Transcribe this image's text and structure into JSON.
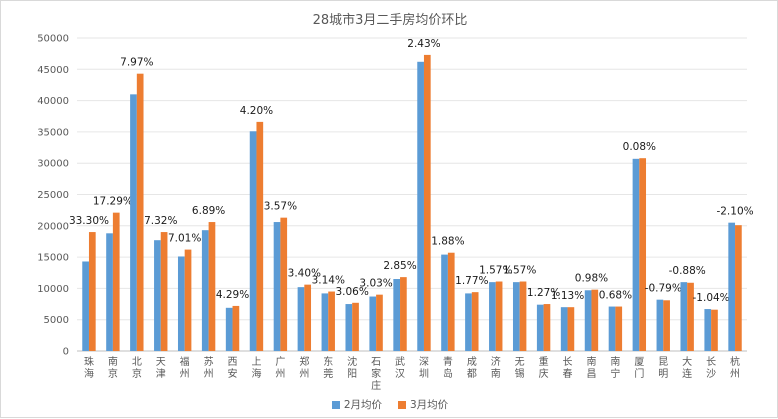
{
  "chart_data": {
    "type": "bar",
    "title": "28城市3月二手房均价环比",
    "xlabel": "",
    "ylabel": "",
    "ylim": [
      0,
      50000
    ],
    "ytick_step": 5000,
    "grid": true,
    "legend_position": "bottom",
    "categories": [
      "珠海",
      "南京",
      "北京",
      "天津",
      "福州",
      "苏州",
      "西安",
      "上海",
      "广州",
      "郑州",
      "东莞",
      "沈阳",
      "石家庄",
      "武汉",
      "深圳",
      "青岛",
      "成都",
      "济南",
      "无锡",
      "重庆",
      "长春",
      "南昌",
      "南宁",
      "厦门",
      "昆明",
      "大连",
      "长沙",
      "杭州"
    ],
    "series": [
      {
        "name": "2月均价",
        "color": "#5b9bd5",
        "values": [
          14300,
          18800,
          41000,
          17700,
          15100,
          19300,
          6900,
          35100,
          20600,
          10200,
          9200,
          7500,
          8700,
          11500,
          46200,
          15400,
          9200,
          11000,
          11000,
          7400,
          7000,
          9700,
          7100,
          30700,
          8200,
          11000,
          6700,
          20500
        ]
      },
      {
        "name": "3月均价",
        "color": "#ed7d31",
        "values": [
          19000,
          22100,
          44300,
          19000,
          16200,
          20600,
          7200,
          36600,
          21300,
          10600,
          9500,
          7700,
          9000,
          11800,
          47300,
          15700,
          9400,
          11100,
          11100,
          7500,
          7000,
          9800,
          7100,
          30800,
          8100,
          10900,
          6600,
          20100
        ]
      }
    ],
    "change_labels": [
      "33.30%",
      "17.29%",
      "7.97%",
      "7.32%",
      "7.01%",
      "6.89%",
      "4.29%",
      "4.20%",
      "3.57%",
      "3.40%",
      "3.14%",
      "3.06%",
      "3.03%",
      "2.85%",
      "2.43%",
      "1.88%",
      "1.77%",
      "1.57%",
      "1.57%",
      "1.27%",
      "1.13%",
      "0.98%",
      "0.68%",
      "0.08%",
      "-0.79%",
      "-0.88%",
      "-1.04%",
      "-2.10%"
    ]
  }
}
